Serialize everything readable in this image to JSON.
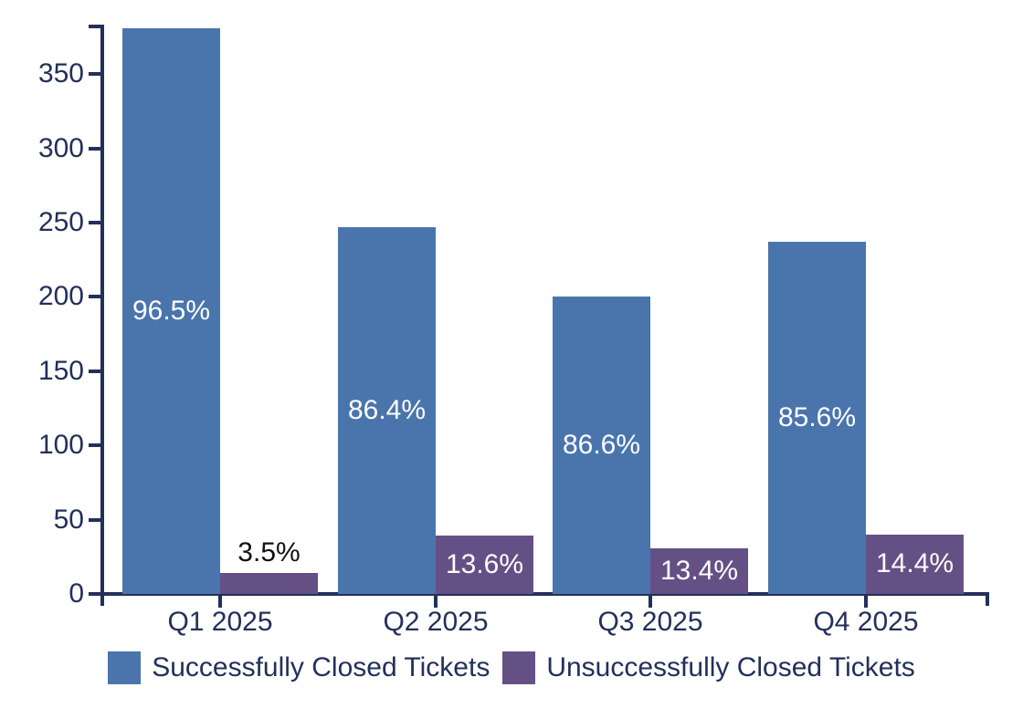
{
  "page": {
    "background_color": "#ffffff"
  },
  "chart_data": {
    "type": "bar",
    "title": "",
    "xlabel": "",
    "ylabel": "",
    "categories": [
      "Q1 2025",
      "Q2 2025",
      "Q3 2025",
      "Q4 2025"
    ],
    "series": [
      {
        "name": "Successfully Closed Tickets",
        "color": "#4a75ac",
        "values": [
          381,
          247,
          200,
          237
        ],
        "bar_labels": [
          "96.5%",
          "86.4%",
          "86.6%",
          "85.6%"
        ],
        "bar_label_placement": [
          "inside",
          "inside",
          "inside",
          "inside"
        ],
        "bar_label_color_inside": "#ffffff",
        "bar_label_color_above": "#111111"
      },
      {
        "name": "Unsuccessfully Closed Tickets",
        "color": "#655086",
        "values": [
          14,
          39,
          31,
          40
        ],
        "bar_labels": [
          "3.5%",
          "13.6%",
          "13.4%",
          "14.4%"
        ],
        "bar_label_placement": [
          "above",
          "inside",
          "inside",
          "inside"
        ],
        "bar_label_color_inside": "#ffffff",
        "bar_label_color_above": "#111111"
      }
    ],
    "y_ticks": [
      "0",
      "50",
      "100",
      "150",
      "200",
      "250",
      "300",
      "350"
    ],
    "y_tick_values": [
      0,
      50,
      100,
      150,
      200,
      250,
      300,
      350
    ],
    "ylim": [
      0,
      382
    ],
    "grid": false,
    "legend_position": "bottom",
    "axis_color": "#22305a",
    "tick_label_color": "#22305a"
  }
}
